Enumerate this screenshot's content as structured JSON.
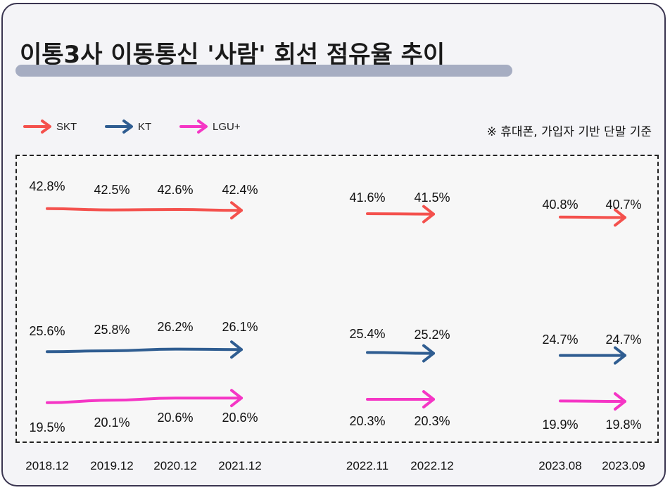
{
  "title": "이통3사 이동통신 '사람' 회선 점유율 추이",
  "note": "※ 휴대폰, 가입자 기반 단말 기준",
  "colors": {
    "SKT": "#f4514d",
    "KT": "#2f5d91",
    "LGU+": "#f536c5"
  },
  "legend": [
    {
      "name": "SKT",
      "color": "#f4514d"
    },
    {
      "name": "KT",
      "color": "#2f5d91"
    },
    {
      "name": "LGU+",
      "color": "#f536c5"
    }
  ],
  "chart_data": {
    "type": "line",
    "unit": "%",
    "x": [
      "2018.12",
      "2019.12",
      "2020.12",
      "2021.12",
      "2022.11",
      "2022.12",
      "2023.08",
      "2023.09"
    ],
    "groups": [
      [
        0,
        1,
        2,
        3
      ],
      [
        4,
        5
      ],
      [
        6,
        7
      ]
    ],
    "series": [
      {
        "name": "SKT",
        "values": [
          42.8,
          42.5,
          42.6,
          42.4,
          41.6,
          41.5,
          40.8,
          40.7
        ],
        "labels": [
          "42.8%",
          "42.5%",
          "42.6%",
          "42.4%",
          "41.6%",
          "41.5%",
          "40.8%",
          "40.7%"
        ]
      },
      {
        "name": "KT",
        "values": [
          25.6,
          25.8,
          26.2,
          26.1,
          25.4,
          25.2,
          24.7,
          24.7
        ],
        "labels": [
          "25.6%",
          "25.8%",
          "26.2%",
          "26.1%",
          "25.4%",
          "25.2%",
          "24.7%",
          "24.7%"
        ]
      },
      {
        "name": "LGU+",
        "values": [
          19.5,
          20.1,
          20.6,
          20.6,
          20.3,
          20.3,
          19.9,
          19.8
        ],
        "labels": [
          "19.5%",
          "20.1%",
          "20.6%",
          "20.6%",
          "20.3%",
          "20.3%",
          "19.9%",
          "19.8%"
        ]
      }
    ],
    "legend_position": "top-left",
    "grid": false
  }
}
